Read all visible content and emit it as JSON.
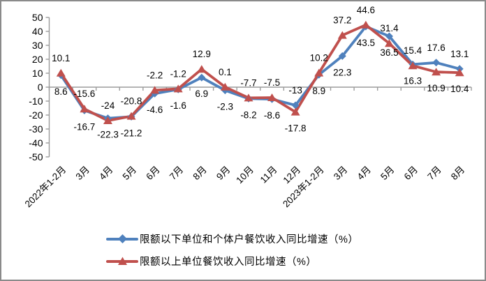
{
  "chart_data": {
    "type": "line",
    "title": "",
    "xlabel": "",
    "ylabel": "",
    "categories": [
      "2022年1-2月",
      "3月",
      "4月",
      "5月",
      "6月",
      "7月",
      "8月",
      "9月",
      "10月",
      "11月",
      "12月",
      "2023年1-2月",
      "3月",
      "4月",
      "5月",
      "6月",
      "7月",
      "8月"
    ],
    "series": [
      {
        "name": "限额以下单位和个体户餐饮收入同比增速（%）",
        "color": "#4F81BD",
        "marker": "diamond",
        "values": [
          8.6,
          -16.7,
          -22.3,
          -21.2,
          -4.6,
          -1.6,
          6.9,
          -2.3,
          -8.2,
          -8.6,
          -13,
          8.9,
          22.3,
          43.5,
          36.5,
          16.3,
          17.6,
          13.1
        ],
        "label_side": [
          "below",
          "below",
          "below",
          "below",
          "below",
          "below",
          "below",
          "below",
          "below",
          "below",
          "above",
          "below",
          "below",
          "below",
          "below",
          "below",
          "above",
          "above"
        ]
      },
      {
        "name": "限额以上单位餐饮收入同比增速（%）",
        "color": "#C0504D",
        "marker": "triangle",
        "values": [
          10.1,
          -15.6,
          -24,
          -20.8,
          -2.2,
          -1.2,
          12.9,
          0.1,
          -7.7,
          -7.5,
          -17.8,
          10.2,
          37.2,
          44.6,
          31.4,
          15.4,
          10.9,
          10.4
        ],
        "label_side": [
          "above",
          "above",
          "above",
          "above",
          "above",
          "above",
          "above",
          "above",
          "above",
          "above",
          "below",
          "above",
          "above",
          "above",
          "above",
          "above",
          "below",
          "below"
        ]
      }
    ],
    "ylim": [
      -50,
      50
    ],
    "yticks": [
      50,
      40,
      30,
      20,
      10,
      0,
      -10,
      -20,
      -30,
      -40,
      -50
    ],
    "ytick_labels": [
      "50",
      "40",
      "30",
      "20",
      "10",
      "0",
      "-10",
      "-20",
      "-30",
      "-40",
      "-50"
    ],
    "grid": false,
    "legend_position": "bottom",
    "axis_color": "#9b9b9b",
    "text_color": "#000000",
    "label_font_px": 13.5,
    "tick_font_px": 14
  }
}
